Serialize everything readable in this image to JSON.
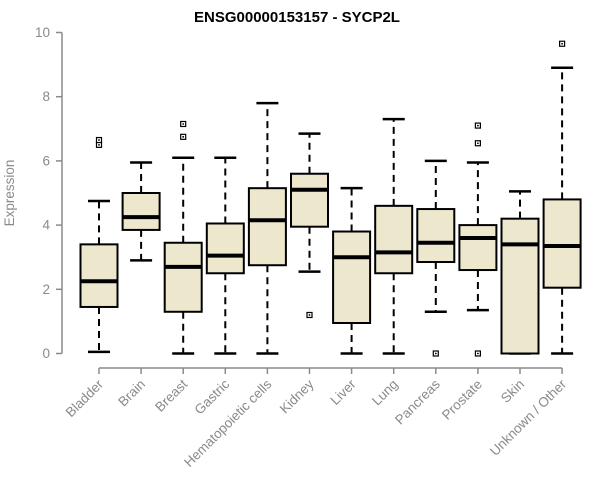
{
  "chart_data": {
    "type": "boxplot",
    "title": "ENSG00000153157 - SYCP2L",
    "xlabel": "",
    "ylabel": "Expression",
    "ylim": [
      0,
      10
    ],
    "yticks": [
      0,
      2,
      4,
      6,
      8,
      10
    ],
    "grid": false,
    "legend": null,
    "categories": [
      "Bladder",
      "Brain",
      "Breast",
      "Gastric",
      "Hematopoietic cells",
      "Kidney",
      "Liver",
      "Lung",
      "Pancreas",
      "Prostate",
      "Skin",
      "Unknown / Other"
    ],
    "boxes": [
      {
        "category": "Bladder",
        "whisker_low": 0.05,
        "q1": 1.45,
        "median": 2.25,
        "q3": 3.4,
        "whisker_high": 4.75,
        "outliers": [
          6.5,
          6.65
        ]
      },
      {
        "category": "Brain",
        "whisker_low": 2.9,
        "q1": 3.85,
        "median": 4.25,
        "q3": 5.0,
        "whisker_high": 5.95,
        "outliers": []
      },
      {
        "category": "Breast",
        "whisker_low": 0.0,
        "q1": 1.3,
        "median": 2.7,
        "q3": 3.45,
        "whisker_high": 6.1,
        "outliers": [
          6.75,
          7.15
        ]
      },
      {
        "category": "Gastric",
        "whisker_low": 0.0,
        "q1": 2.5,
        "median": 3.05,
        "q3": 4.05,
        "whisker_high": 6.1,
        "outliers": []
      },
      {
        "category": "Hematopoietic cells",
        "whisker_low": 0.0,
        "q1": 2.75,
        "median": 4.15,
        "q3": 5.15,
        "whisker_high": 7.8,
        "outliers": []
      },
      {
        "category": "Kidney",
        "whisker_low": 2.55,
        "q1": 3.95,
        "median": 5.1,
        "q3": 5.6,
        "whisker_high": 6.85,
        "outliers": [
          1.2
        ]
      },
      {
        "category": "Liver",
        "whisker_low": 0.0,
        "q1": 0.95,
        "median": 3.0,
        "q3": 3.8,
        "whisker_high": 5.15,
        "outliers": []
      },
      {
        "category": "Lung",
        "whisker_low": 0.0,
        "q1": 2.5,
        "median": 3.15,
        "q3": 4.6,
        "whisker_high": 7.3,
        "outliers": []
      },
      {
        "category": "Pancreas",
        "whisker_low": 1.3,
        "q1": 2.85,
        "median": 3.45,
        "q3": 4.5,
        "whisker_high": 6.0,
        "outliers": [
          0.0
        ]
      },
      {
        "category": "Prostate",
        "whisker_low": 1.35,
        "q1": 2.6,
        "median": 3.6,
        "q3": 4.0,
        "whisker_high": 5.95,
        "outliers": [
          0.0,
          6.55,
          7.1
        ]
      },
      {
        "category": "Skin",
        "whisker_low": 0.0,
        "q1": 0.0,
        "median": 3.4,
        "q3": 4.2,
        "whisker_high": 5.05,
        "outliers": []
      },
      {
        "category": "Unknown / Other",
        "whisker_low": 0.0,
        "q1": 2.05,
        "median": 3.35,
        "q3": 4.8,
        "whisker_high": 8.9,
        "outliers": [
          9.65
        ]
      }
    ],
    "colors": {
      "background": "#FFFFFF",
      "box_fill": "#EDE8CD",
      "box_stroke": "#000000",
      "median": "#000000",
      "whisker": "#000000",
      "outlier_stroke": "#000000",
      "outlier_fill": "#FFFFFF",
      "axis": "#8A8A8A",
      "tick_label": "#8A8A8A",
      "title": "#000000"
    }
  }
}
